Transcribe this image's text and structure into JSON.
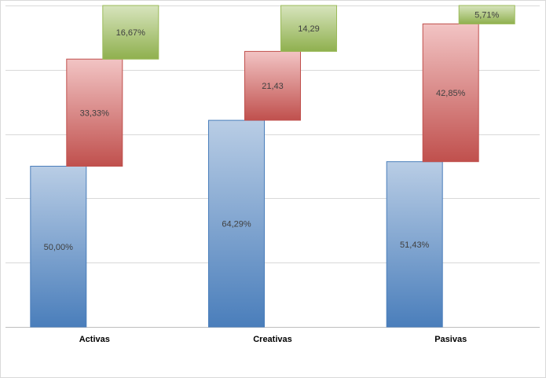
{
  "chart_data": {
    "type": "bar",
    "stacked": true,
    "style": "floating-stacked-columns",
    "categories": [
      "Activas",
      "Creativas",
      "Pasivas"
    ],
    "series": [
      {
        "color": "#4a7ebb",
        "values": [
          50.0,
          64.29,
          51.43
        ],
        "labels": [
          "50,00%",
          "64,29%",
          "51,43%"
        ]
      },
      {
        "color": "#c0504d",
        "values": [
          33.33,
          21.43,
          42.85
        ],
        "labels": [
          "33,33%",
          "21,43",
          "42,85%"
        ]
      },
      {
        "color": "#9bbb59",
        "values": [
          16.67,
          14.29,
          5.71
        ],
        "labels": [
          "16,67%",
          "14,29",
          "5,71%"
        ]
      }
    ],
    "ylim": [
      0,
      100
    ],
    "y_gridline_step": 20,
    "grid": true,
    "legend": "none"
  }
}
